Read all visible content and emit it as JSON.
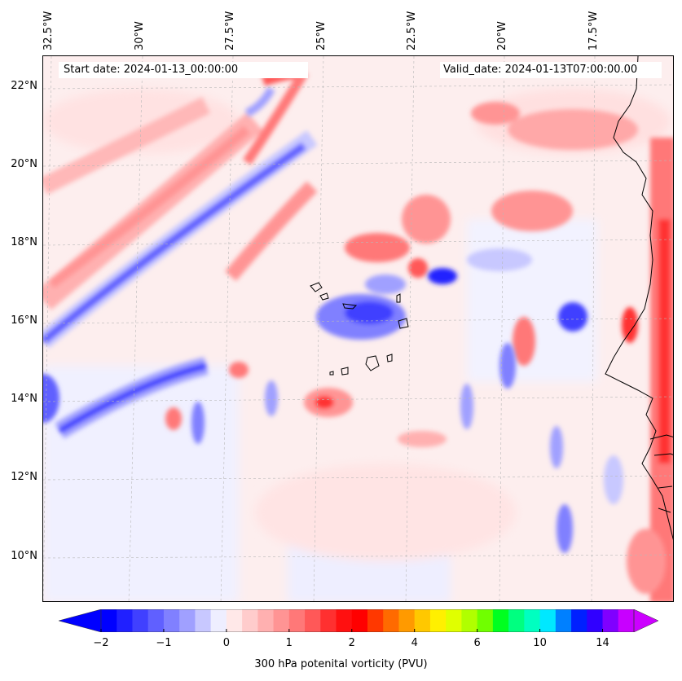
{
  "header": {
    "start_date": "Start date: 2024-01-13_00:00:00",
    "valid_date": "Valid_date: 2024-01-13T07:00:00.00"
  },
  "axes": {
    "longitude_labels": [
      "32.5°W",
      "30°W",
      "27.5°W",
      "25°W",
      "22.5°W",
      "20°W",
      "17.5°W"
    ],
    "latitude_labels": [
      "22°N",
      "20°N",
      "18°N",
      "16°N",
      "14°N",
      "12°N",
      "10°N"
    ]
  },
  "colorbar": {
    "label": "300 hPa potenital vorticity (PVU)",
    "tick_labels": [
      "−2",
      "−1",
      "0",
      "1",
      "2",
      "4",
      "6",
      "10",
      "14"
    ],
    "colors": [
      "#0000ff",
      "#2020ff",
      "#4040ff",
      "#6060ff",
      "#8080ff",
      "#a0a0ff",
      "#c8c8ff",
      "#eeeeff",
      "#ffe8e8",
      "#ffcccc",
      "#ffb0b0",
      "#ff9494",
      "#ff7878",
      "#ff5858",
      "#ff3030",
      "#ff1010",
      "#ff0000",
      "#ff3800",
      "#ff6a00",
      "#ff9a00",
      "#ffc800",
      "#fff000",
      "#e0ff00",
      "#b0ff00",
      "#70ff00",
      "#00ff20",
      "#00ff80",
      "#00ffc0",
      "#00e8ff",
      "#0080ff",
      "#0020ff",
      "#3000ff",
      "#8000ff",
      "#c800ff"
    ],
    "extend_low_color": "#0000ff",
    "extend_high_color": "#cc00ff"
  },
  "map": {
    "background_color": "#fdeeee",
    "positive_color": "#ff5858",
    "negative_color": "#4040ff",
    "coastline_color": "#000000"
  }
}
